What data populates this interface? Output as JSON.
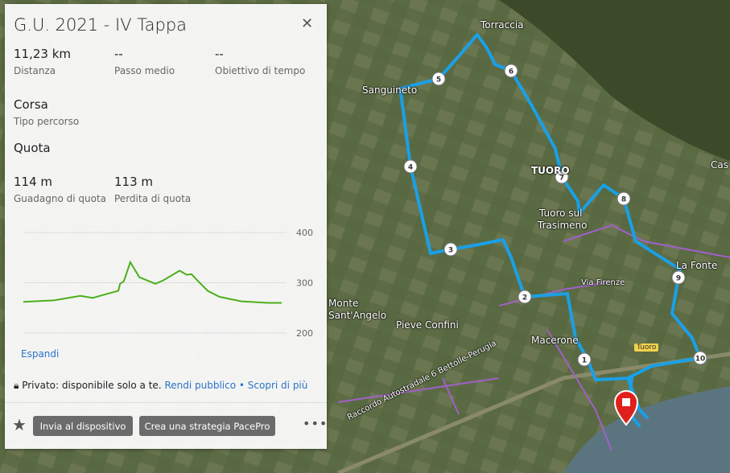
{
  "map": {
    "labels": {
      "torraccia": "Torraccia",
      "sanguineto": "Sanguineto",
      "tuoro": "TUORO",
      "tuoro_sul": "Tuoro sul",
      "trasimeno": "Trasimeno",
      "la_fonte": "La Fonte",
      "via_firenze": "Via Firenze",
      "pieve_confini": "Pieve Confini",
      "macerone": "Macerone",
      "monte": "Monte",
      "sant_angelo": "Sant'Angelo",
      "raccordo": "Raccordo Autostradale 6 Bettolle-Perugia",
      "cas": "Cas",
      "road_badge": "Tuoro"
    },
    "markers": [
      "1",
      "2",
      "3",
      "4",
      "5",
      "6",
      "7",
      "8",
      "9",
      "10"
    ],
    "route_color": "#1aa0e6"
  },
  "panel": {
    "title": "G.U. 2021 - IV Tappa",
    "close_icon": "close-icon",
    "stats": [
      {
        "value": "11,23 km",
        "label": "Distanza"
      },
      {
        "value": "--",
        "label": "Passo medio"
      },
      {
        "value": "--",
        "label": "Obiettivo di tempo"
      }
    ],
    "type": {
      "value": "Corsa",
      "label": "Tipo percorso"
    },
    "elevation_heading": "Quota",
    "elevation": [
      {
        "value": "114 m",
        "label": "Guadagno di quota"
      },
      {
        "value": "113 m",
        "label": "Perdita di quota"
      }
    ],
    "expand": "Espandi",
    "privacy": {
      "text": "Privato: disponibile solo a te.",
      "make_public": "Rendi pubblico",
      "sep": "•",
      "learn_more": "Scopri di più"
    },
    "buttons": {
      "send": "Invia al dispositivo",
      "pacepro": "Crea una strategia PacePro",
      "more": "•••",
      "star": "★"
    }
  },
  "chart_data": {
    "type": "line",
    "color": "#4caf1a",
    "x_unit": "km",
    "x": [
      0,
      1.33,
      2.48,
      3.01,
      4.13,
      4.2,
      4.37,
      4.65,
      5.04,
      5.74,
      6.09,
      6.79,
      7.1,
      7.31,
      7.56,
      8.01,
      8.53,
      9.48,
      10.64,
      11.23
    ],
    "y": [
      262,
      265,
      274,
      270,
      284,
      298,
      303,
      341,
      311,
      298,
      305,
      324,
      316,
      317,
      305,
      284,
      272,
      263,
      260,
      260
    ],
    "yticks": [
      "400",
      "300",
      "200"
    ],
    "ylim": [
      200,
      400
    ],
    "grid": true
  }
}
